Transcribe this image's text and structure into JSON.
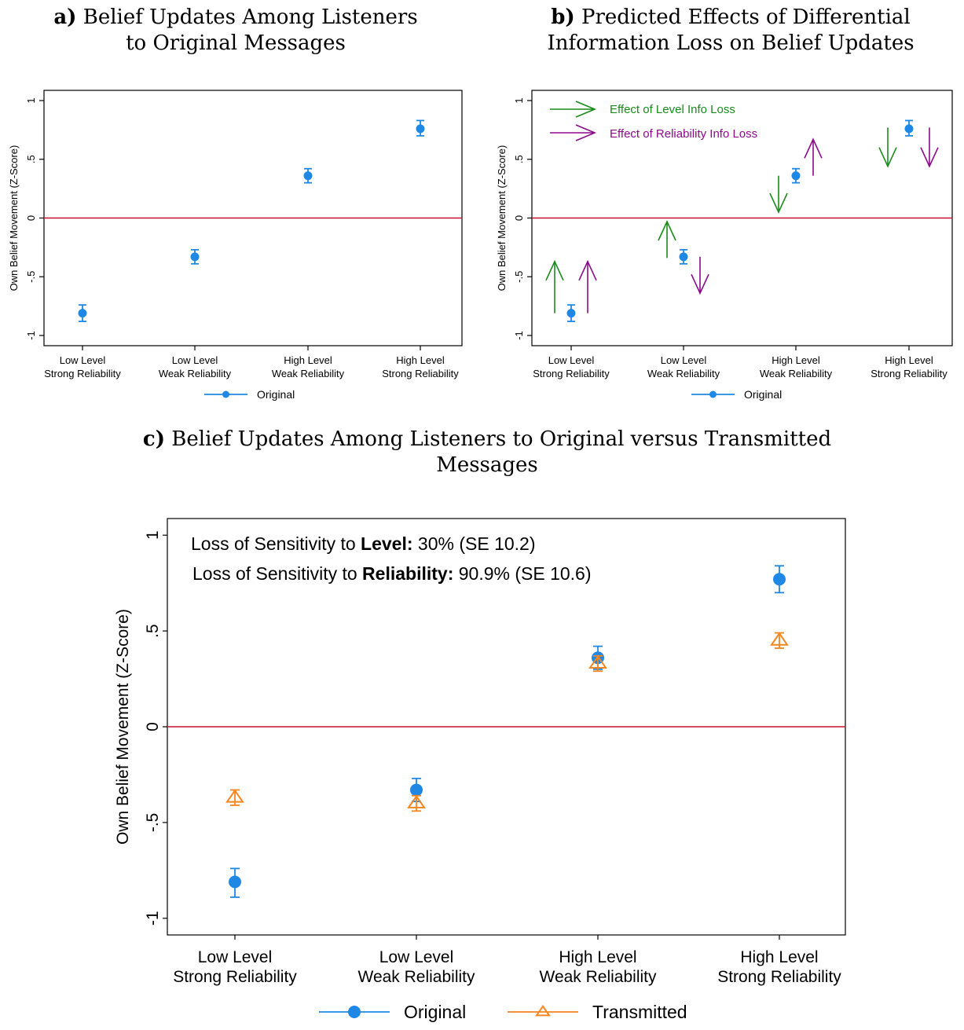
{
  "titles": {
    "a": {
      "letter": "a)",
      "line1": "Belief Updates Among Listeners",
      "line2": "to Original Messages"
    },
    "b": {
      "letter": "b)",
      "line1": "Predicted Effects of Differential",
      "line2": "Information Loss on Belief Updates"
    },
    "c": {
      "letter": "c)",
      "line1": "Belief Updates Among Listeners to Original versus Transmitted",
      "line2": "Messages"
    }
  },
  "colors": {
    "original": "#1f88e5",
    "transmitted": "#f5851f",
    "zero_line": "#c8102e",
    "level_arrow": "#1a8a1a",
    "reliability_arrow": "#8b0a8b"
  },
  "chart_data": [
    {
      "type": "scatter",
      "panel": "a",
      "ylabel": "Own Belief Movement (Z-Score)",
      "ylim": [
        -1,
        1
      ],
      "yticks": [
        "-1",
        "-.5",
        "0",
        ".5",
        "1"
      ],
      "categories": [
        [
          "Low Level",
          "Strong Reliability"
        ],
        [
          "Low Level",
          "Weak Reliability"
        ],
        [
          "High Level",
          "Weak Reliability"
        ],
        [
          "High Level",
          "Strong Reliability"
        ]
      ],
      "series": [
        {
          "name": "Original",
          "values": [
            -0.81,
            -0.33,
            0.36,
            0.76
          ],
          "ci_low": [
            -0.88,
            -0.39,
            0.3,
            0.7
          ],
          "ci_high": [
            -0.74,
            -0.27,
            0.42,
            0.83
          ]
        }
      ],
      "reference_line": 0
    },
    {
      "type": "scatter",
      "panel": "b",
      "ylabel": "Own Belief Movement (Z-Score)",
      "ylim": [
        -1,
        1
      ],
      "yticks": [
        "-1",
        "-.5",
        "0",
        ".5",
        "1"
      ],
      "categories": [
        [
          "Low Level",
          "Strong Reliability"
        ],
        [
          "Low Level",
          "Weak Reliability"
        ],
        [
          "High Level",
          "Weak Reliability"
        ],
        [
          "High Level",
          "Strong Reliability"
        ]
      ],
      "series": [
        {
          "name": "Original",
          "values": [
            -0.81,
            -0.33,
            0.36,
            0.76
          ],
          "ci_low": [
            -0.88,
            -0.39,
            0.3,
            0.7
          ],
          "ci_high": [
            -0.74,
            -0.27,
            0.42,
            0.83
          ]
        }
      ],
      "reference_line": 0,
      "annotations": {
        "level_label": "Effect of Level Info Loss",
        "reliability_label": "Effect of Reliability Info Loss",
        "level_arrows": [
          {
            "category": 0,
            "from": -0.81,
            "to": -0.37
          },
          {
            "category": 1,
            "from": -0.34,
            "to": -0.03
          },
          {
            "category": 2,
            "from": 0.36,
            "to": 0.05
          },
          {
            "category": 3,
            "from": 0.77,
            "to": 0.44
          }
        ],
        "reliability_arrows": [
          {
            "category": 0,
            "from": -0.81,
            "to": -0.37
          },
          {
            "category": 1,
            "from": -0.33,
            "to": -0.64
          },
          {
            "category": 2,
            "from": 0.36,
            "to": 0.67
          },
          {
            "category": 3,
            "from": 0.77,
            "to": 0.44
          }
        ]
      }
    },
    {
      "type": "scatter",
      "panel": "c",
      "ylabel": "Own Belief Movement (Z-Score)",
      "ylim": [
        -1,
        1
      ],
      "yticks": [
        "-1",
        "-.5",
        "0",
        ".5",
        "1"
      ],
      "categories": [
        [
          "Low Level",
          "Strong Reliability"
        ],
        [
          "Low Level",
          "Weak Reliability"
        ],
        [
          "High Level",
          "Weak Reliability"
        ],
        [
          "High Level",
          "Strong Reliability"
        ]
      ],
      "series": [
        {
          "name": "Original",
          "values": [
            -0.81,
            -0.33,
            0.36,
            0.77
          ],
          "ci_low": [
            -0.89,
            -0.39,
            0.3,
            0.7
          ],
          "ci_high": [
            -0.74,
            -0.27,
            0.42,
            0.84
          ]
        },
        {
          "name": "Transmitted",
          "values": [
            -0.37,
            -0.4,
            0.33,
            0.45
          ],
          "ci_low": [
            -0.41,
            -0.44,
            0.29,
            0.41
          ],
          "ci_high": [
            -0.33,
            -0.36,
            0.37,
            0.49
          ]
        }
      ],
      "reference_line": 0,
      "annotations": {
        "line1": {
          "prefix": "Loss of Sensitivity to ",
          "bold": "Level:",
          "suffix": " 30% (SE 10.2)"
        },
        "line2": {
          "prefix": "Loss of Sensitivity to ",
          "bold": "Reliability:",
          "suffix": " 90.9% (SE 10.6)"
        }
      }
    }
  ]
}
